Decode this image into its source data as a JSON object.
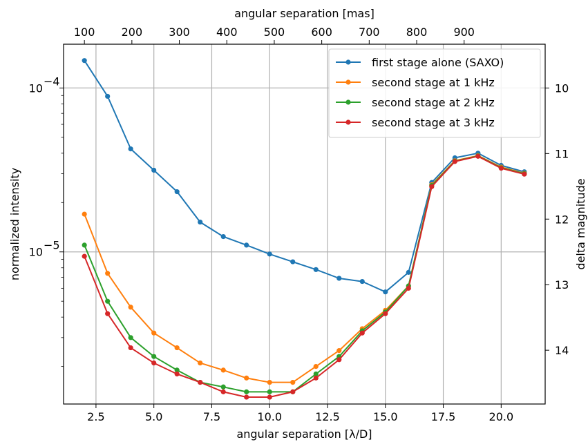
{
  "chart_data": {
    "type": "line",
    "xlabel": "angular separation [λ/D]",
    "xlabel_top": "angular separation [mas]",
    "ylabel": "normalized intensity",
    "ylabel_right": "delta magnitude",
    "x_scale": "linear",
    "y_scale": "log",
    "xlim": [
      1.1,
      21.9
    ],
    "ylim": [
      1.18e-06,
      0.000185
    ],
    "grid": true,
    "legend_position": "top-right",
    "x_ticks": [
      {
        "value": 2.5,
        "label": "2.5"
      },
      {
        "value": 5.0,
        "label": "5.0"
      },
      {
        "value": 7.5,
        "label": "7.5"
      },
      {
        "value": 10.0,
        "label": "10.0"
      },
      {
        "value": 12.5,
        "label": "12.5"
      },
      {
        "value": 15.0,
        "label": "15.0"
      },
      {
        "value": 17.5,
        "label": "17.5"
      },
      {
        "value": 20.0,
        "label": "20.0"
      }
    ],
    "x_top_ticks": [
      {
        "value": 2.0,
        "label": "100"
      },
      {
        "value": 4.05,
        "label": "200"
      },
      {
        "value": 6.1,
        "label": "300"
      },
      {
        "value": 8.15,
        "label": "400"
      },
      {
        "value": 10.2,
        "label": "500"
      },
      {
        "value": 12.25,
        "label": "600"
      },
      {
        "value": 14.3,
        "label": "700"
      },
      {
        "value": 16.35,
        "label": "800"
      },
      {
        "value": 18.4,
        "label": "900"
      }
    ],
    "y_ticks": [
      {
        "value": 1e-05,
        "base": "10",
        "exp": "−5"
      },
      {
        "value": 0.0001,
        "base": "10",
        "exp": "−4"
      }
    ],
    "y_right_ticks": [
      {
        "value": 10,
        "label": "10"
      },
      {
        "value": 11,
        "label": "11"
      },
      {
        "value": 12,
        "label": "12"
      },
      {
        "value": 13,
        "label": "13"
      },
      {
        "value": 14,
        "label": "14"
      }
    ],
    "x": [
      2,
      3,
      4,
      5,
      6,
      7,
      8,
      9,
      10,
      11,
      12,
      13,
      14,
      15,
      16,
      17,
      18,
      19,
      20,
      21
    ],
    "series": [
      {
        "name": "first stage alone (SAXO)",
        "color": "#1f77b4",
        "values": [
          0.000147,
          8.9e-05,
          4.25e-05,
          3.15e-05,
          2.33e-05,
          1.52e-05,
          1.24e-05,
          1.1e-05,
          9.7e-06,
          8.7e-06,
          7.8e-06,
          6.9e-06,
          6.6e-06,
          5.7e-06,
          7.5e-06,
          2.65e-05,
          3.75e-05,
          4e-05,
          3.37e-05,
          3.08e-05
        ]
      },
      {
        "name": "second stage at 1 kHz",
        "color": "#ff7f0e",
        "values": [
          1.7e-05,
          7.4e-06,
          4.6e-06,
          3.2e-06,
          2.6e-06,
          2.1e-06,
          1.9e-06,
          1.7e-06,
          1.6e-06,
          1.6e-06,
          2e-06,
          2.5e-06,
          3.4e-06,
          4.4e-06,
          6.2e-06,
          2.57e-05,
          3.6e-05,
          3.87e-05,
          3.29e-05,
          3.02e-05
        ]
      },
      {
        "name": "second stage at 2 kHz",
        "color": "#2ca02c",
        "values": [
          1.1e-05,
          5e-06,
          3e-06,
          2.3e-06,
          1.9e-06,
          1.6e-06,
          1.5e-06,
          1.4e-06,
          1.4e-06,
          1.4e-06,
          1.8e-06,
          2.3e-06,
          3.3e-06,
          4.3e-06,
          6.2e-06,
          2.54e-05,
          3.58e-05,
          3.85e-05,
          3.26e-05,
          3e-05
        ]
      },
      {
        "name": "second stage at 3 kHz",
        "color": "#d62728",
        "values": [
          9.4e-06,
          4.2e-06,
          2.6e-06,
          2.1e-06,
          1.8e-06,
          1.6e-06,
          1.4e-06,
          1.3e-06,
          1.3e-06,
          1.4e-06,
          1.7e-06,
          2.2e-06,
          3.2e-06,
          4.2e-06,
          6e-06,
          2.5e-05,
          3.56e-05,
          3.83e-05,
          3.24e-05,
          2.98e-05
        ]
      }
    ]
  }
}
